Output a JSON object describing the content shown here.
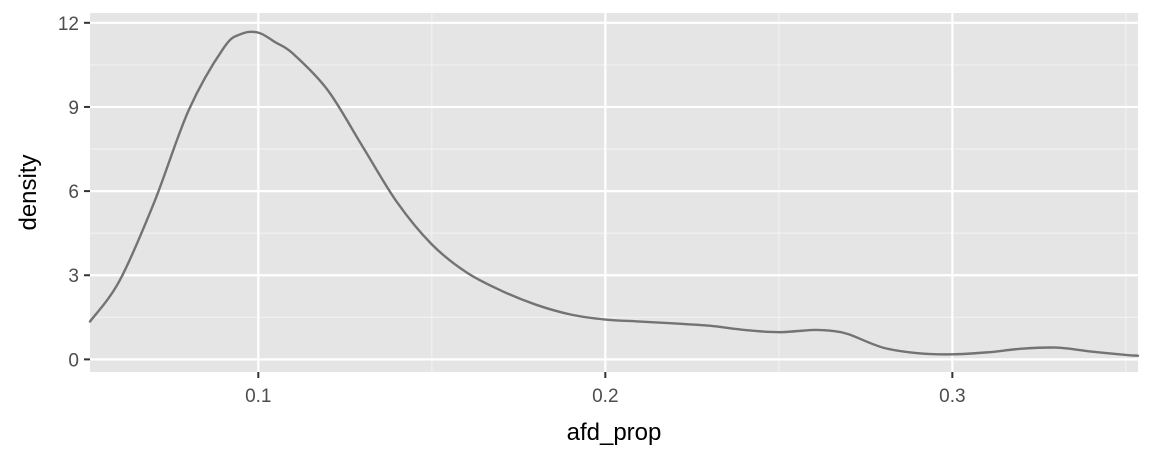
{
  "chart_data": {
    "type": "line",
    "title": "",
    "xlabel": "afd_prop",
    "ylabel": "density",
    "xlim": [
      0.0515,
      0.3535
    ],
    "ylim": [
      -0.45,
      12.35
    ],
    "x_ticks": [
      0.1,
      0.2,
      0.3
    ],
    "x_tick_labels": [
      "0.1",
      "0.2",
      "0.3"
    ],
    "y_ticks": [
      0,
      3,
      6,
      9,
      12
    ],
    "y_tick_labels": [
      "0",
      "3",
      "6",
      "9",
      "12"
    ],
    "grid": true,
    "legend": "none",
    "colors": {
      "panel_background": "#e5e5e5",
      "grid_major": "#ffffff",
      "grid_minor": "#f2f2f2",
      "line": "#737373",
      "tick": "#333333"
    },
    "series": [
      {
        "values_x": [
          0.0515,
          0.06,
          0.07,
          0.08,
          0.09,
          0.095,
          0.1,
          0.105,
          0.11,
          0.12,
          0.13,
          0.14,
          0.15,
          0.16,
          0.17,
          0.18,
          0.19,
          0.2,
          0.21,
          0.22,
          0.23,
          0.24,
          0.25,
          0.26,
          0.265,
          0.27,
          0.28,
          0.29,
          0.3,
          0.31,
          0.32,
          0.33,
          0.34,
          0.35,
          0.3535
        ],
        "values_y": [
          1.35,
          2.8,
          5.6,
          8.9,
          11.1,
          11.6,
          11.65,
          11.3,
          10.9,
          9.6,
          7.6,
          5.6,
          4.1,
          3.1,
          2.45,
          1.95,
          1.6,
          1.42,
          1.35,
          1.28,
          1.2,
          1.05,
          0.97,
          1.05,
          1.02,
          0.9,
          0.42,
          0.22,
          0.18,
          0.25,
          0.38,
          0.42,
          0.28,
          0.16,
          0.13
        ]
      }
    ]
  }
}
